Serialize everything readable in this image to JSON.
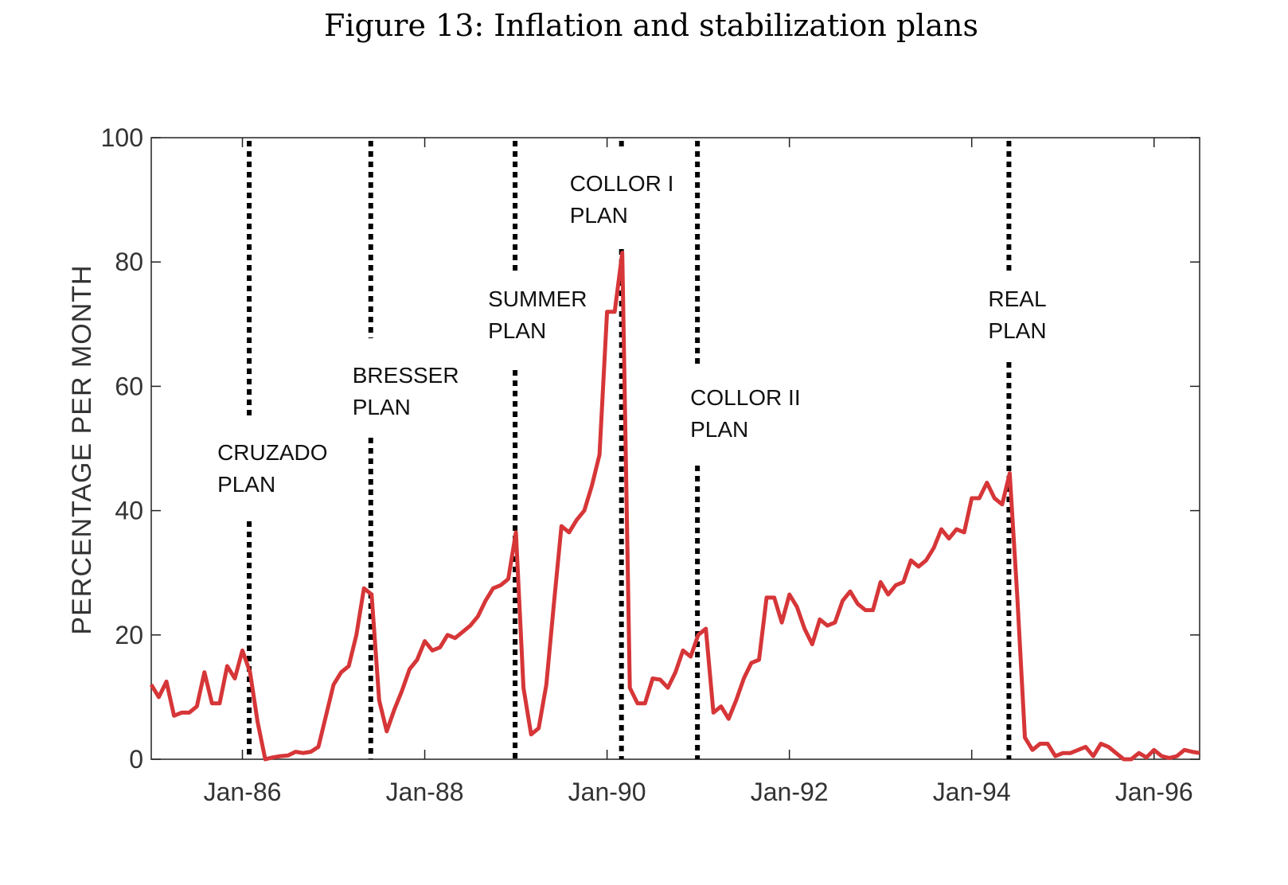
{
  "title": "Figure 13: Inflation and stabilization plans",
  "chart_data": {
    "type": "line",
    "title": "Figure 13: Inflation and stabilization plans",
    "xlabel": "",
    "ylabel": "PERCENTAGE PER MONTH",
    "ylim": [
      0,
      100
    ],
    "xlim": [
      "1985-01",
      "1996-07"
    ],
    "yticks": [
      "0",
      "20",
      "40",
      "60",
      "80",
      "100"
    ],
    "xticks": [
      {
        "label": "Jan-86",
        "date": "1986-01"
      },
      {
        "label": "Jan-88",
        "date": "1988-01"
      },
      {
        "label": "Jan-90",
        "date": "1990-01"
      },
      {
        "label": "Jan-92",
        "date": "1992-01"
      },
      {
        "label": "Jan-94",
        "date": "1994-01"
      },
      {
        "label": "Jan-96",
        "date": "1996-01"
      }
    ],
    "grid": false,
    "line_color": "#d63638",
    "x": [
      "1985-01",
      "1985-02",
      "1985-03",
      "1985-04",
      "1985-05",
      "1985-06",
      "1985-07",
      "1985-08",
      "1985-09",
      "1985-10",
      "1985-11",
      "1985-12",
      "1986-01",
      "1986-02",
      "1986-03",
      "1986-04",
      "1986-05",
      "1986-06",
      "1986-07",
      "1986-08",
      "1986-09",
      "1986-10",
      "1986-11",
      "1986-12",
      "1987-01",
      "1987-02",
      "1987-03",
      "1987-04",
      "1987-05",
      "1987-06",
      "1987-07",
      "1987-08",
      "1987-09",
      "1987-10",
      "1987-11",
      "1987-12",
      "1988-01",
      "1988-02",
      "1988-03",
      "1988-04",
      "1988-05",
      "1988-06",
      "1988-07",
      "1988-08",
      "1988-09",
      "1988-10",
      "1988-11",
      "1988-12",
      "1989-01",
      "1989-02",
      "1989-03",
      "1989-04",
      "1989-05",
      "1989-06",
      "1989-07",
      "1989-08",
      "1989-09",
      "1989-10",
      "1989-11",
      "1989-12",
      "1990-01",
      "1990-02",
      "1990-03",
      "1990-04",
      "1990-05",
      "1990-06",
      "1990-07",
      "1990-08",
      "1990-09",
      "1990-10",
      "1990-11",
      "1990-12",
      "1991-01",
      "1991-02",
      "1991-03",
      "1991-04",
      "1991-05",
      "1991-06",
      "1991-07",
      "1991-08",
      "1991-09",
      "1991-10",
      "1991-11",
      "1991-12",
      "1992-01",
      "1992-02",
      "1992-03",
      "1992-04",
      "1992-05",
      "1992-06",
      "1992-07",
      "1992-08",
      "1992-09",
      "1992-10",
      "1992-11",
      "1992-12",
      "1993-01",
      "1993-02",
      "1993-03",
      "1993-04",
      "1993-05",
      "1993-06",
      "1993-07",
      "1993-08",
      "1993-09",
      "1993-10",
      "1993-11",
      "1993-12",
      "1994-01",
      "1994-02",
      "1994-03",
      "1994-04",
      "1994-05",
      "1994-06",
      "1994-07",
      "1994-08",
      "1994-09",
      "1994-10",
      "1994-11",
      "1994-12",
      "1995-01",
      "1995-02",
      "1995-03",
      "1995-04",
      "1995-05",
      "1995-06",
      "1995-07",
      "1995-08",
      "1995-09",
      "1995-10",
      "1995-11",
      "1995-12",
      "1996-01",
      "1996-02",
      "1996-03",
      "1996-04",
      "1996-05",
      "1996-06",
      "1996-07"
    ],
    "series": [
      {
        "values": [
          12,
          10,
          12.5,
          7,
          7.5,
          7.5,
          8.5,
          14,
          9,
          9,
          15,
          13,
          17.5,
          14,
          6,
          0,
          0.3,
          0.5,
          0.6,
          1.2,
          1,
          1.2,
          2,
          7,
          12,
          14,
          15,
          20,
          27.5,
          26.5,
          9.5,
          4.5,
          8,
          11,
          14.5,
          16,
          19,
          17.5,
          18,
          20,
          19.5,
          20.5,
          21.5,
          23,
          25.5,
          27.5,
          28,
          29,
          36.5,
          11.5,
          4,
          5,
          12,
          25,
          37.5,
          36.5,
          38.5,
          40,
          44,
          49,
          72,
          72,
          81.5,
          11.5,
          9,
          9,
          13,
          12.8,
          11.5,
          14,
          17.5,
          16.5,
          20,
          21,
          7.5,
          8.5,
          6.5,
          9.5,
          13,
          15.5,
          16,
          26,
          26,
          22,
          26.5,
          24.5,
          21,
          18.5,
          22.5,
          21.5,
          22,
          25.5,
          27,
          25,
          24,
          24,
          28.5,
          26.5,
          28,
          28.5,
          32,
          31,
          32,
          34,
          37,
          35.5,
          37,
          36.5,
          42,
          42,
          44.5,
          42,
          41,
          46,
          26,
          3.5,
          1.5,
          2.5,
          2.5,
          0.5,
          1,
          1,
          1.5,
          2,
          0.5,
          2.5,
          2,
          1,
          0,
          0,
          1,
          0.3,
          1.5,
          0.5,
          0.2,
          0.5,
          1.5,
          1.2,
          1
        ]
      }
    ],
    "annotations": [
      {
        "line1": "CRUZADO",
        "line2": "PLAN",
        "date": "1986-02"
      },
      {
        "line1": "BRESSER",
        "line2": "PLAN",
        "date": "1987-06"
      },
      {
        "line1": "SUMMER",
        "line2": "PLAN",
        "date": "1989-01"
      },
      {
        "line1": "COLLOR I",
        "line2": "PLAN",
        "date": "1990-03"
      },
      {
        "line1": "COLLOR II",
        "line2": "PLAN",
        "date": "1991-01"
      },
      {
        "line1": "REAL",
        "line2": "PLAN",
        "date": "1994-06"
      }
    ]
  }
}
